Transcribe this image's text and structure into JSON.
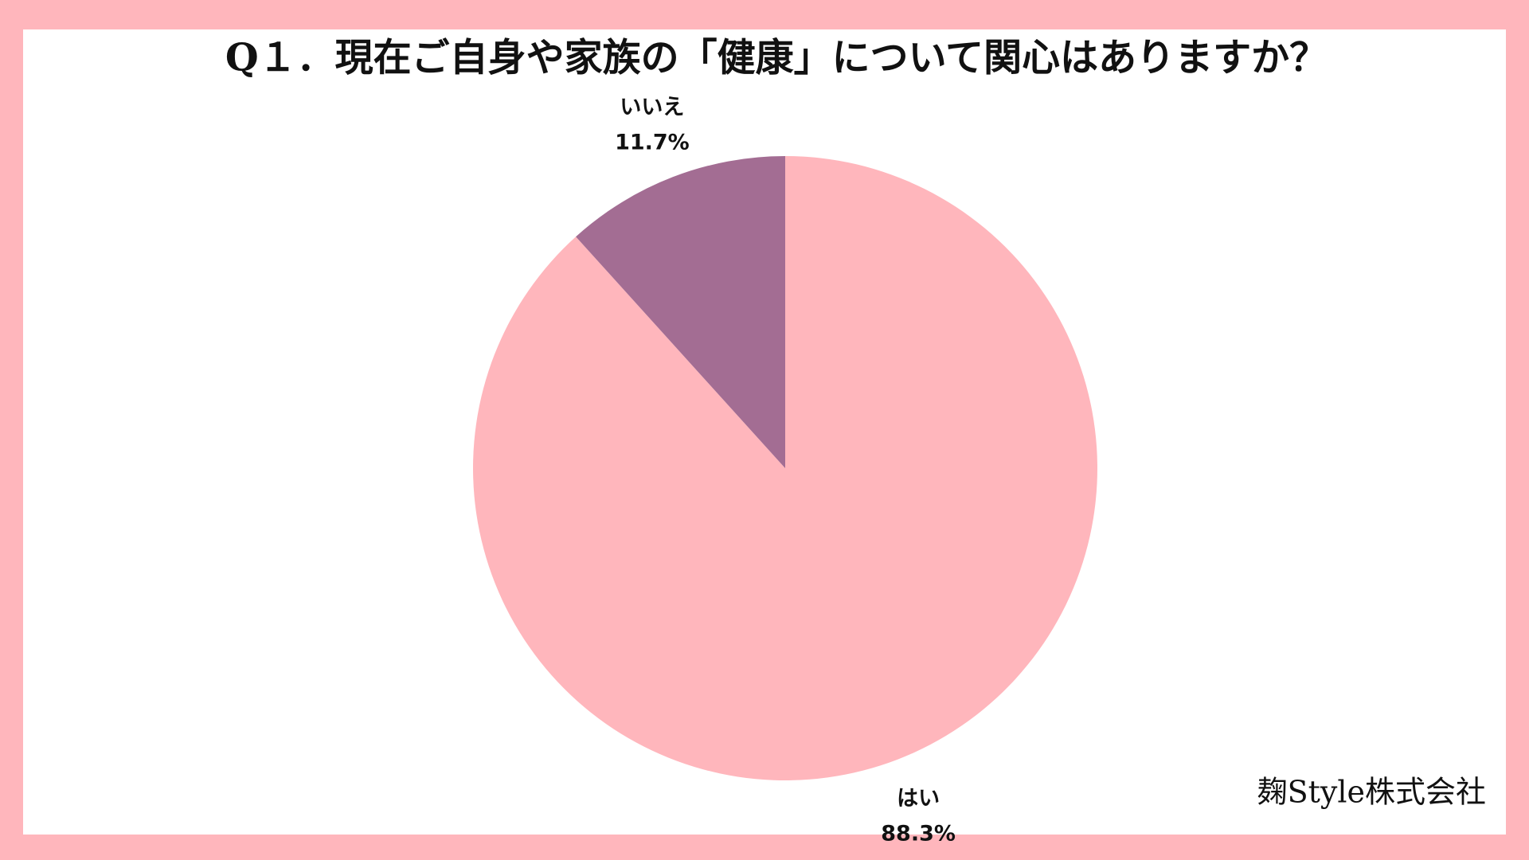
{
  "chart_data": {
    "type": "pie",
    "title": "Q１．現在ご自身や家族の「健康」について関心はありますか？",
    "categories": [
      "はい",
      "いいえ"
    ],
    "values": [
      88.3,
      11.7
    ],
    "value_labels": [
      "88.3%",
      "11.7%"
    ],
    "colors": [
      "#ffb6bc",
      "#a36d93"
    ],
    "source": "麹Style株式会社"
  }
}
